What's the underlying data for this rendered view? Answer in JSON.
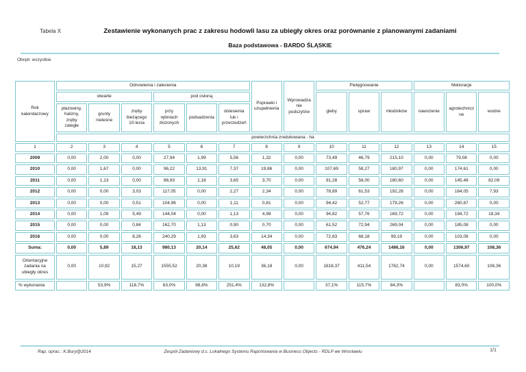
{
  "page": {
    "label": "Tabela X",
    "title": "Zestawienie wykonanych prac z zakresu hodowli lasu za ubiegły okres oraz porównanie z planowanymi zadaniami",
    "subtitle": "Baza podstawowa - BARDO ŚLĄSKIE",
    "scope": "Obręb: wszystkie"
  },
  "colors": {
    "table_border": "#7cc6ce",
    "rule": "#a3d6dc"
  },
  "table": {
    "col1_header": "Rok kalendarzowy",
    "groups": {
      "odnowienia": "Odnowienia i zalesienia",
      "otwarte": "otwarte",
      "pod_oslona": "pod osłoną",
      "poprawki": "Poprawki i uzupełnienia",
      "wprowadzanie": "Wprowadzanie podszytów",
      "pielegnowanie": "Pielęgnowanie",
      "melioracje": "Melioracje"
    },
    "leaf_headers": [
      "płazowiny, halizny, zręby zaległe",
      "grunty nieleśne",
      "zręby bieżącego 10-lecia",
      "przy rębniach złożonych",
      "podsadzenia",
      "dolesienia luk i przerzedzeń",
      "gleby",
      "upraw",
      "młodników",
      "nawożenie",
      "agrotechniczne",
      "wodne"
    ],
    "unit_row": "powierzchnia zredukowana - ha",
    "column_numbers": [
      "1",
      "2",
      "3",
      "4",
      "5",
      "6",
      "7",
      "8",
      "9",
      "10",
      "11",
      "12",
      "13",
      "14",
      "15"
    ],
    "rows": [
      {
        "label": "2009",
        "values": [
          "0,00",
          "2,00",
          "0,00",
          "27,94",
          "1,99",
          "5,56",
          "1,32",
          "0,00",
          "73,49",
          "46,79",
          "215,10",
          "0,00",
          "79,08",
          "0,00"
        ]
      },
      {
        "label": "2010",
        "values": [
          "0,00",
          "1,67",
          "0,00",
          "96,22",
          "13,91",
          "7,37",
          "19,86",
          "0,00",
          "107,69",
          "58,27",
          "180,97",
          "0,00",
          "174,61",
          "0,00"
        ]
      },
      {
        "label": "2011",
        "values": [
          "0,00",
          "1,13",
          "0,00",
          "86,93",
          "1,18",
          "3,65",
          "3,70",
          "0,00",
          "91,28",
          "58,00",
          "180,60",
          "0,00",
          "145,48",
          "82,09"
        ]
      },
      {
        "label": "2012",
        "values": [
          "0,00",
          "0,00",
          "3,03",
          "117,05",
          "0,00",
          "2,27",
          "2,34",
          "0,00",
          "78,89",
          "61,53",
          "192,28",
          "0,00",
          "164,05",
          "7,93"
        ]
      },
      {
        "label": "2013",
        "values": [
          "0,00",
          "0,00",
          "0,51",
          "104,96",
          "0,00",
          "1,11",
          "0,81",
          "0,00",
          "94,42",
          "52,77",
          "179,26",
          "0,00",
          "260,87",
          "0,00"
        ]
      },
      {
        "label": "2014",
        "values": [
          "0,00",
          "1,09",
          "5,49",
          "144,04",
          "0,00",
          "1,13",
          "4,98",
          "0,00",
          "94,82",
          "57,76",
          "169,72",
          "0,00",
          "194,72",
          "18,34"
        ]
      },
      {
        "label": "2015",
        "values": [
          "0,00",
          "0,00",
          "0,84",
          "162,70",
          "1,13",
          "0,90",
          "0,70",
          "0,00",
          "61,52",
          "72,94",
          "269,04",
          "0,00",
          "185,08",
          "0,00"
        ]
      },
      {
        "label": "2016",
        "values": [
          "0,00",
          "0,00",
          "8,26",
          "240,29",
          "1,93",
          "3,63",
          "14,34",
          "0,00",
          "72,83",
          "68,18",
          "99,19",
          "0,00",
          "103,08",
          "0,00"
        ]
      }
    ],
    "suma_row": {
      "label": "Suma:",
      "values": [
        "0,00",
        "5,89",
        "18,13",
        "980,13",
        "20,14",
        "25,62",
        "48,05",
        "0,00",
        "674,94",
        "476,24",
        "1486,16",
        "0,00",
        "1306,97",
        "108,36"
      ]
    },
    "plan_row": {
      "label": "Orientacyjne zadania na ubiegły okres",
      "values": [
        "0,00",
        "10,92",
        "15,27",
        "1555,52",
        "20,38",
        "10,19",
        "36,18",
        "0,00",
        "1818,37",
        "411,54",
        "1762,74",
        "0,00",
        "1574,60",
        "108,36"
      ]
    },
    "percent_row": {
      "label": "% wykonania",
      "values": [
        "",
        "53,9%",
        "118,7%",
        "63,0%",
        "98,8%",
        "251,4%",
        "132,8%",
        "",
        "37,1%",
        "115,7%",
        "84,3%",
        "",
        "83,0%",
        "100,0%"
      ]
    }
  },
  "footer": {
    "left": "Rap. oprac.: K.Bury@2014",
    "center": "Zespół Zadaniowy d.s. Lokalnego Systemu Raportowania w Business Objects - RDLP we Wrocławiu",
    "right": "1/1"
  }
}
